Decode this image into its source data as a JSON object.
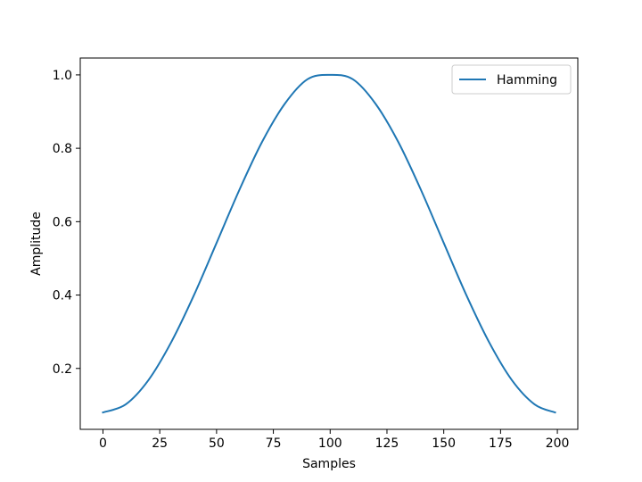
{
  "chart_data": {
    "type": "line",
    "xlabel": "Samples",
    "ylabel": "Amplitude",
    "xlim": [
      -10,
      209
    ],
    "ylim": [
      0.034,
      1.046
    ],
    "xticks": [
      0,
      25,
      50,
      75,
      100,
      125,
      150,
      175,
      200
    ],
    "xtick_labels": [
      "0",
      "25",
      "50",
      "75",
      "100",
      "125",
      "150",
      "175",
      "200"
    ],
    "yticks": [
      0.2,
      0.4,
      0.6,
      0.8,
      1.0
    ],
    "ytick_labels": [
      "0.2",
      "0.4",
      "0.6",
      "0.8",
      "1.0"
    ],
    "grid": false,
    "legend_position": "upper right",
    "series": [
      {
        "name": "Hamming",
        "color": "#1f77b4",
        "x": [
          0,
          10,
          20,
          30,
          40,
          50,
          60,
          70,
          80,
          90,
          100,
          110,
          120,
          130,
          140,
          150,
          160,
          170,
          180,
          190,
          199
        ],
        "y": [
          0.08,
          0.102,
          0.168,
          0.271,
          0.399,
          0.542,
          0.686,
          0.817,
          0.921,
          0.988,
          1.0,
          0.988,
          0.921,
          0.817,
          0.686,
          0.542,
          0.399,
          0.271,
          0.168,
          0.102,
          0.08
        ]
      }
    ]
  }
}
